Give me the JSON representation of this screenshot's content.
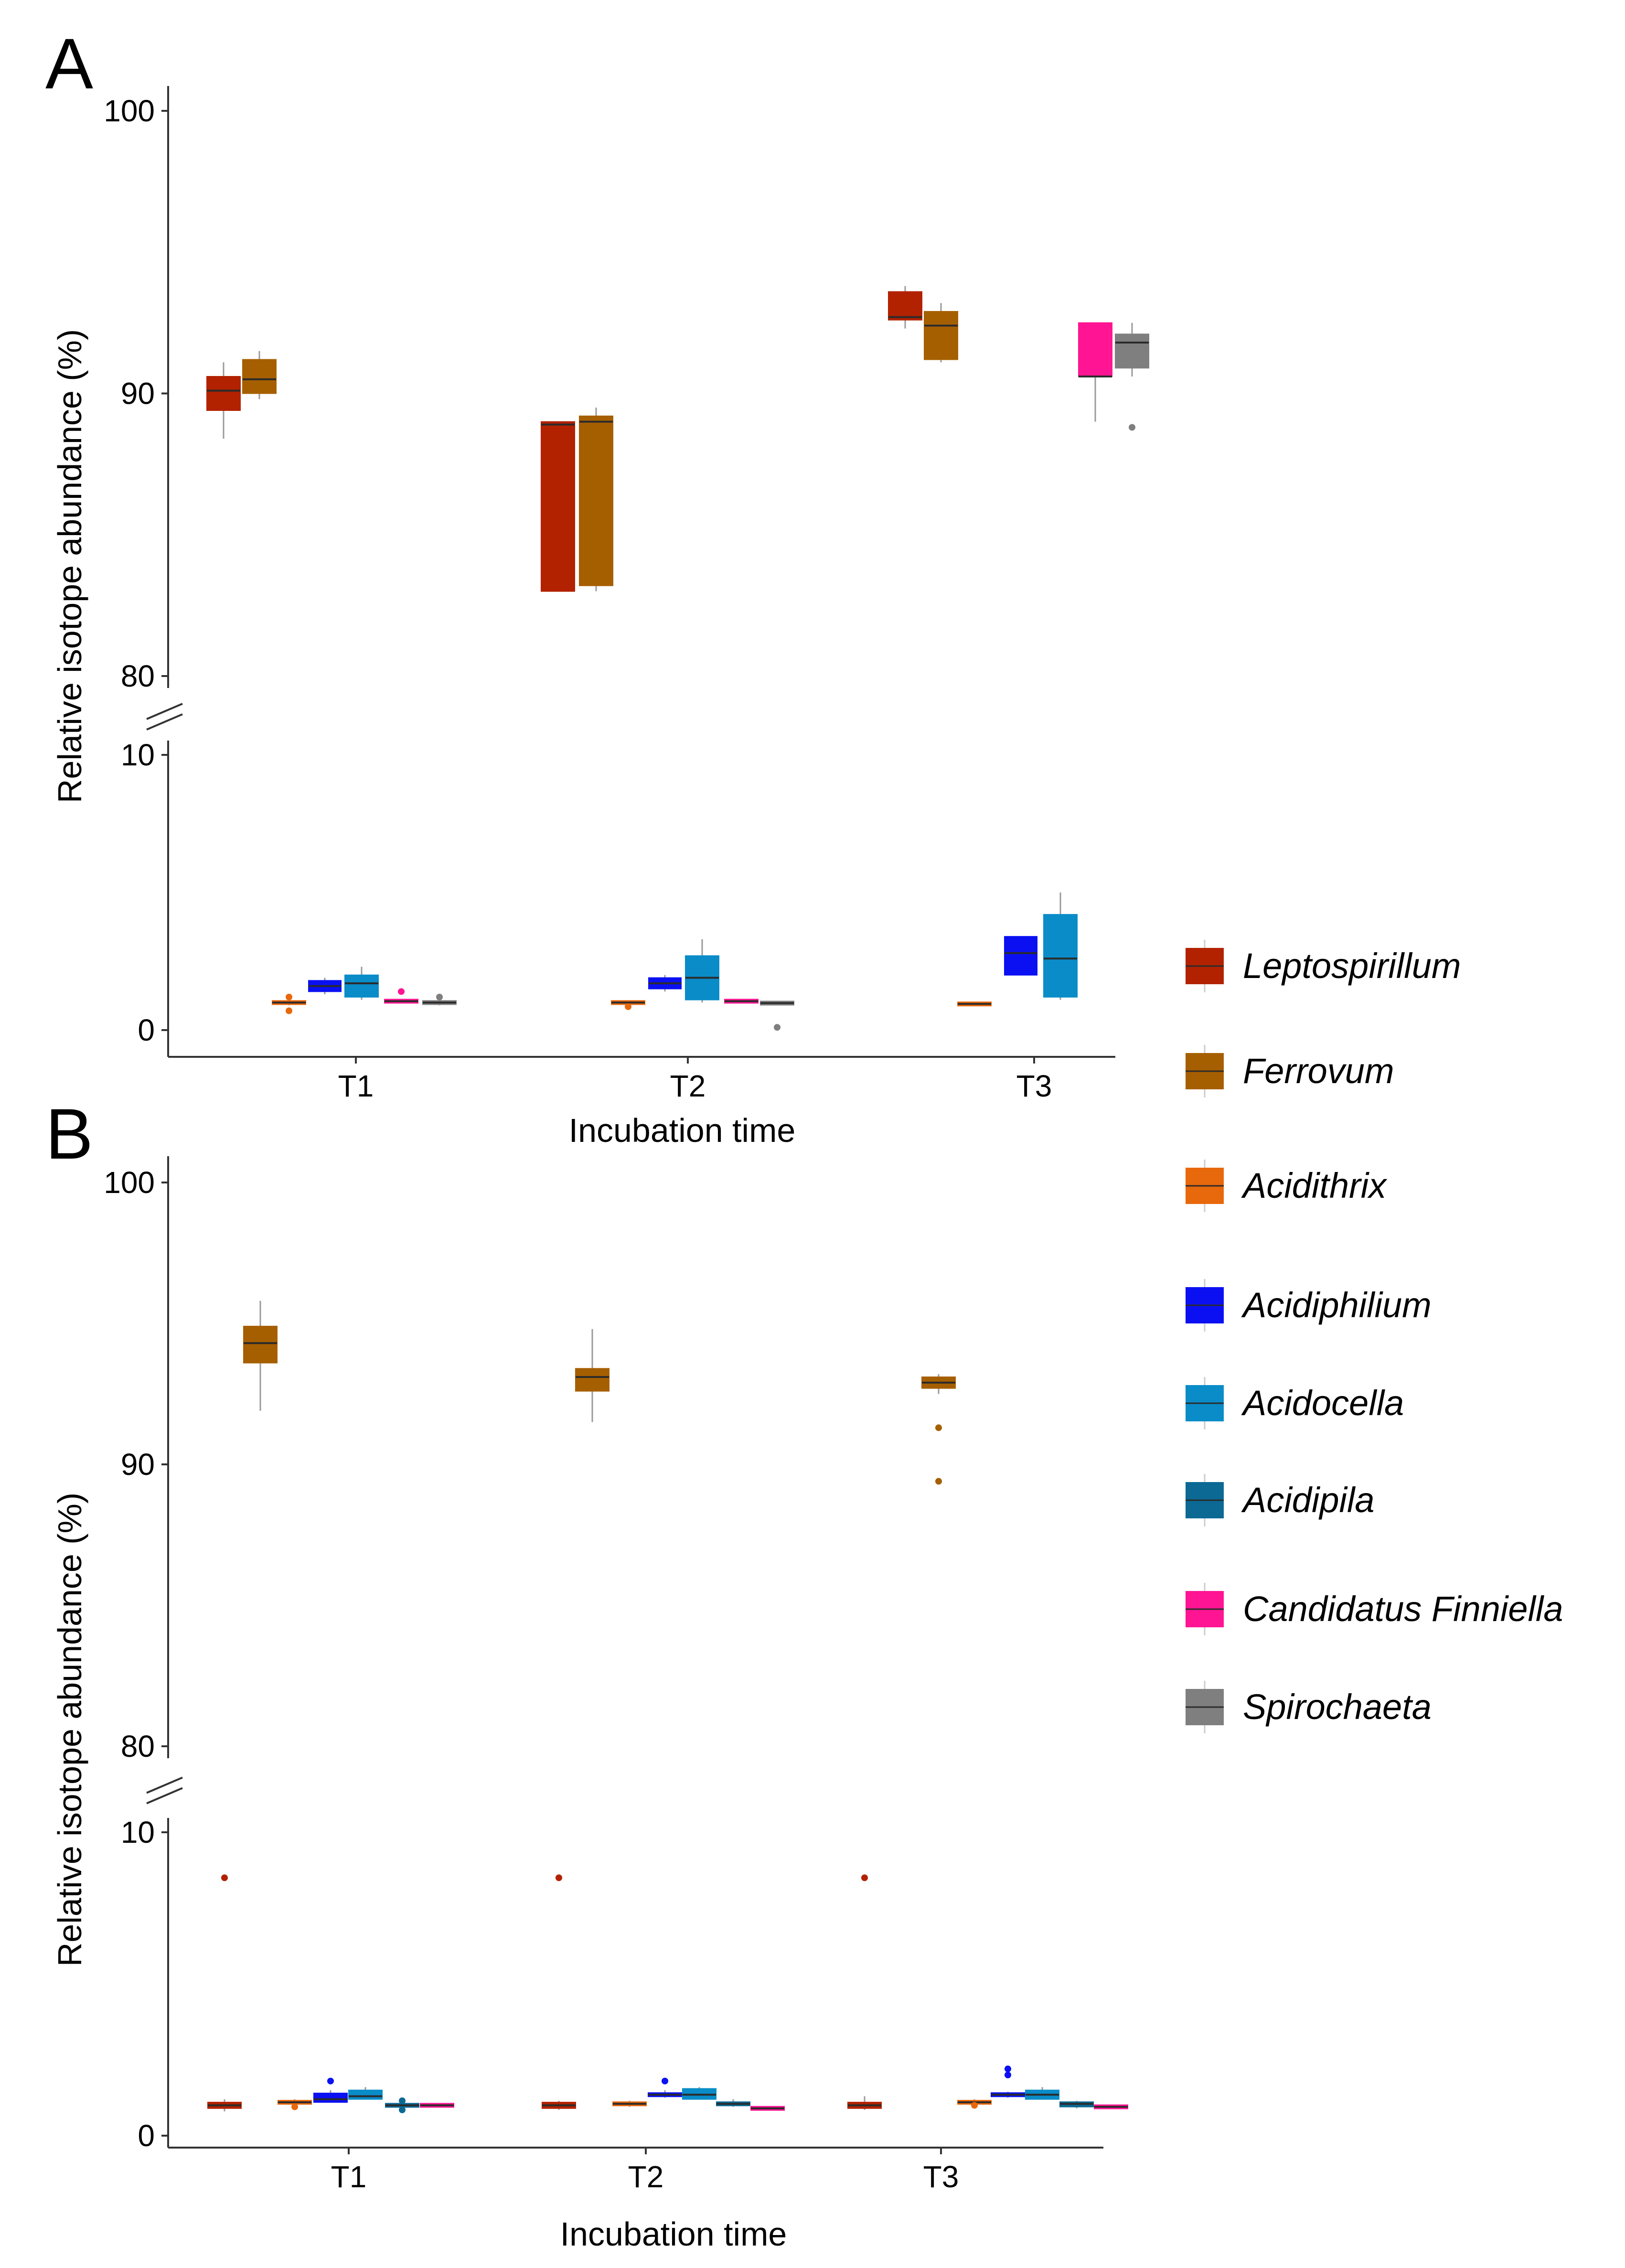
{
  "figure": {
    "x_label": "Incubation time",
    "y_label": "Relative isotope abundance (%)",
    "categories": [
      "T1",
      "T2",
      "T3"
    ],
    "upper_ticks": [
      "80",
      "90",
      "100"
    ],
    "lower_ticks": [
      "0",
      "10"
    ]
  },
  "legend": {
    "items": [
      {
        "label": "Leptospirillum",
        "color": "#b22200"
      },
      {
        "label": "Ferrovum",
        "color": "#a65f00"
      },
      {
        "label": "Acidithrix",
        "color": "#e8680c"
      },
      {
        "label": "Acidiphilium",
        "color": "#0a10f2"
      },
      {
        "label": "Acidocella",
        "color": "#0a8cc8"
      },
      {
        "label": "Acidipila",
        "color": "#0b6994"
      },
      {
        "label": "Candidatus Finniella",
        "color": "#ff1493"
      },
      {
        "label": "Spirochaeta",
        "color": "#7f7f7f"
      }
    ]
  },
  "chart_data": [
    {
      "type": "boxplot",
      "panel": "A",
      "title": "",
      "xlabel": "Incubation time",
      "ylabel": "Relative isotope abundance (%)",
      "categories": [
        "T1",
        "T2",
        "T3"
      ],
      "y_axis_break": {
        "lower_range": [
          0,
          10
        ],
        "upper_range": [
          80,
          100
        ]
      },
      "series": [
        {
          "name": "Leptospirillum",
          "color": "#b22200",
          "boxes": [
            {
              "x": "T1",
              "q1": 89.4,
              "median": 90.1,
              "q3": 90.6,
              "low": 88.4,
              "high": 91.1,
              "outliers": []
            },
            {
              "x": "T2",
              "q1": 83.0,
              "median": 88.9,
              "q3": 89.0,
              "low": 83.0,
              "high": 89.0,
              "outliers": []
            },
            {
              "x": "T3",
              "q1": 92.6,
              "median": 92.7,
              "q3": 93.6,
              "low": 92.3,
              "high": 93.8,
              "outliers": []
            }
          ]
        },
        {
          "name": "Ferrovum",
          "color": "#a65f00",
          "boxes": [
            {
              "x": "T1",
              "q1": 90.0,
              "median": 90.5,
              "q3": 91.2,
              "low": 89.8,
              "high": 91.5,
              "outliers": []
            },
            {
              "x": "T2",
              "q1": 83.2,
              "median": 89.0,
              "q3": 89.2,
              "low": 83.0,
              "high": 89.5,
              "outliers": []
            },
            {
              "x": "T3",
              "q1": 91.2,
              "median": 92.4,
              "q3": 92.9,
              "low": 91.1,
              "high": 93.2,
              "outliers": []
            }
          ]
        },
        {
          "name": "Acidithrix",
          "color": "#e8680c",
          "boxes": [
            {
              "x": "T1",
              "q1": 0.95,
              "median": 1.0,
              "q3": 1.05,
              "low": 0.9,
              "high": 1.1,
              "outliers": [
                0.7,
                1.2
              ]
            },
            {
              "x": "T2",
              "q1": 0.95,
              "median": 1.0,
              "q3": 1.05,
              "low": 0.95,
              "high": 1.05,
              "outliers": [
                0.85
              ]
            },
            {
              "x": "T3",
              "q1": 0.9,
              "median": 0.95,
              "q3": 1.0,
              "low": 0.9,
              "high": 1.0,
              "outliers": []
            }
          ]
        },
        {
          "name": "Acidiphilium",
          "color": "#0a10f2",
          "boxes": [
            {
              "x": "T1",
              "q1": 1.4,
              "median": 1.6,
              "q3": 1.8,
              "low": 1.3,
              "high": 1.9,
              "outliers": []
            },
            {
              "x": "T2",
              "q1": 1.5,
              "median": 1.7,
              "q3": 1.9,
              "low": 1.4,
              "high": 2.0,
              "outliers": []
            },
            {
              "x": "T3",
              "q1": 2.0,
              "median": 2.8,
              "q3": 3.4,
              "low": 2.0,
              "high": 3.4,
              "outliers": []
            }
          ]
        },
        {
          "name": "Acidocella",
          "color": "#0a8cc8",
          "boxes": [
            {
              "x": "T1",
              "q1": 1.2,
              "median": 1.7,
              "q3": 2.0,
              "low": 1.1,
              "high": 2.3,
              "outliers": []
            },
            {
              "x": "T2",
              "q1": 1.1,
              "median": 1.9,
              "q3": 2.7,
              "low": 1.0,
              "high": 3.3,
              "outliers": []
            },
            {
              "x": "T3",
              "q1": 1.2,
              "median": 2.6,
              "q3": 4.2,
              "low": 1.1,
              "high": 5.0,
              "outliers": []
            }
          ]
        },
        {
          "name": "Candidatus Finniella",
          "color": "#ff1493",
          "boxes": [
            {
              "x": "T1",
              "q1": 1.0,
              "median": 1.05,
              "q3": 1.1,
              "low": 1.0,
              "high": 1.1,
              "outliers": [
                1.4
              ]
            },
            {
              "x": "T2",
              "q1": 1.0,
              "median": 1.05,
              "q3": 1.1,
              "low": 1.0,
              "high": 1.1,
              "outliers": []
            },
            {
              "x": "T3",
              "q1": 90.6,
              "median": 90.6,
              "q3": 92.5,
              "low": 89.0,
              "high": 92.5,
              "outliers": []
            }
          ]
        },
        {
          "name": "Spirochaeta",
          "color": "#7f7f7f",
          "boxes": [
            {
              "x": "T1",
              "q1": 0.95,
              "median": 1.0,
              "q3": 1.05,
              "low": 0.9,
              "high": 1.1,
              "outliers": [
                1.2
              ]
            },
            {
              "x": "T2",
              "q1": 0.95,
              "median": 0.98,
              "q3": 1.02,
              "low": 0.95,
              "high": 1.02,
              "outliers": [
                0.1
              ]
            },
            {
              "x": "T3",
              "q1": 90.9,
              "median": 91.8,
              "q3": 92.1,
              "low": 90.6,
              "high": 92.5,
              "outliers": [
                88.8
              ]
            }
          ]
        }
      ]
    },
    {
      "type": "boxplot",
      "panel": "B",
      "title": "",
      "xlabel": "Incubation time",
      "ylabel": "Relative isotope abundance (%)",
      "categories": [
        "T1",
        "T2",
        "T3"
      ],
      "y_axis_break": {
        "lower_range": [
          0,
          10
        ],
        "upper_range": [
          80,
          100
        ]
      },
      "series": [
        {
          "name": "Leptospirillum",
          "color": "#b22200",
          "boxes": [
            {
              "x": "T1",
              "q1": 0.9,
              "median": 1.0,
              "q3": 1.1,
              "low": 0.8,
              "high": 1.2,
              "outliers": [
                8.5
              ]
            },
            {
              "x": "T2",
              "q1": 0.9,
              "median": 1.0,
              "q3": 1.1,
              "low": 0.85,
              "high": 1.15,
              "outliers": [
                8.5
              ]
            },
            {
              "x": "T3",
              "q1": 0.9,
              "median": 1.0,
              "q3": 1.1,
              "low": 0.85,
              "high": 1.3,
              "outliers": [
                8.5
              ]
            }
          ]
        },
        {
          "name": "Ferrovum",
          "color": "#a65f00",
          "boxes": [
            {
              "x": "T1",
              "q1": 93.6,
              "median": 94.3,
              "q3": 94.9,
              "low": 91.9,
              "high": 95.8,
              "outliers": []
            },
            {
              "x": "T2",
              "q1": 92.6,
              "median": 93.1,
              "q3": 93.4,
              "low": 91.5,
              "high": 94.8,
              "outliers": []
            },
            {
              "x": "T3",
              "q1": 92.7,
              "median": 92.9,
              "q3": 93.1,
              "low": 92.5,
              "high": 93.2,
              "outliers": [
                91.3,
                89.4
              ]
            }
          ]
        },
        {
          "name": "Acidithrix",
          "color": "#e8680c",
          "boxes": [
            {
              "x": "T1",
              "q1": 1.05,
              "median": 1.1,
              "q3": 1.15,
              "low": 1.0,
              "high": 1.2,
              "outliers": [
                0.95
              ]
            },
            {
              "x": "T2",
              "q1": 1.0,
              "median": 1.05,
              "q3": 1.1,
              "low": 0.95,
              "high": 1.15,
              "outliers": []
            },
            {
              "x": "T3",
              "q1": 1.05,
              "median": 1.1,
              "q3": 1.15,
              "low": 1.0,
              "high": 1.2,
              "outliers": [
                1.0
              ]
            }
          ]
        },
        {
          "name": "Acidiphilium",
          "color": "#0a10f2",
          "boxes": [
            {
              "x": "T1",
              "q1": 1.1,
              "median": 1.2,
              "q3": 1.4,
              "low": 1.1,
              "high": 1.5,
              "outliers": [
                1.8
              ]
            },
            {
              "x": "T2",
              "q1": 1.3,
              "median": 1.35,
              "q3": 1.4,
              "low": 1.25,
              "high": 1.5,
              "outliers": [
                1.8
              ]
            },
            {
              "x": "T3",
              "q1": 1.3,
              "median": 1.35,
              "q3": 1.4,
              "low": 1.25,
              "high": 1.45,
              "outliers": [
                2.0,
                2.2
              ]
            }
          ]
        },
        {
          "name": "Acidocella",
          "color": "#0a8cc8",
          "boxes": [
            {
              "x": "T1",
              "q1": 1.2,
              "median": 1.3,
              "q3": 1.5,
              "low": 1.2,
              "high": 1.6,
              "outliers": []
            },
            {
              "x": "T2",
              "q1": 1.2,
              "median": 1.35,
              "q3": 1.55,
              "low": 1.2,
              "high": 1.6,
              "outliers": []
            },
            {
              "x": "T3",
              "q1": 1.2,
              "median": 1.35,
              "q3": 1.5,
              "low": 1.2,
              "high": 1.6,
              "outliers": []
            }
          ]
        },
        {
          "name": "Acidipila",
          "color": "#0b6994",
          "boxes": [
            {
              "x": "T1",
              "q1": 0.95,
              "median": 1.0,
              "q3": 1.05,
              "low": 0.8,
              "high": 1.2,
              "outliers": [
                0.85,
                1.15
              ]
            },
            {
              "x": "T2",
              "q1": 1.0,
              "median": 1.05,
              "q3": 1.1,
              "low": 0.95,
              "high": 1.2,
              "outliers": []
            },
            {
              "x": "T3",
              "q1": 0.95,
              "median": 1.05,
              "q3": 1.1,
              "low": 0.9,
              "high": 1.15,
              "outliers": []
            }
          ]
        },
        {
          "name": "Candidatus Finniella",
          "color": "#ff1493",
          "boxes": [
            {
              "x": "T1",
              "q1": 0.95,
              "median": 1.0,
              "q3": 1.05,
              "low": 0.95,
              "high": 1.05,
              "outliers": []
            },
            {
              "x": "T2",
              "q1": 0.85,
              "median": 0.9,
              "q3": 0.95,
              "low": 0.85,
              "high": 0.95,
              "outliers": []
            },
            {
              "x": "T3",
              "q1": 0.9,
              "median": 0.95,
              "q3": 1.0,
              "low": 0.9,
              "high": 1.0,
              "outliers": []
            }
          ]
        }
      ]
    }
  ]
}
